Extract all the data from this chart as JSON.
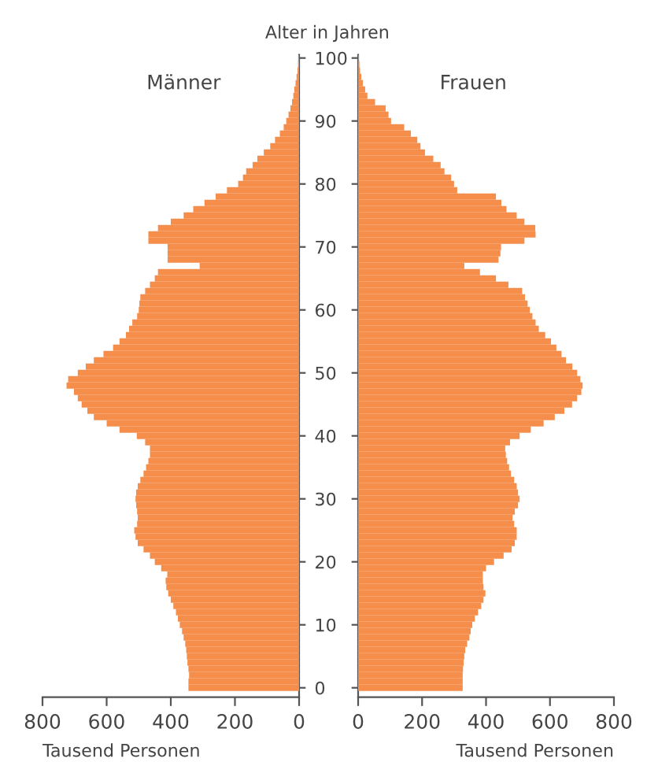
{
  "chart_data": [
    {
      "type": "bar",
      "orientation": "horizontal",
      "title": "Männer",
      "xlabel": "Tausend Personen",
      "ylabel": "Alter in Jahren",
      "x": [
        0,
        1,
        2,
        3,
        4,
        5,
        6,
        7,
        8,
        9,
        10,
        11,
        12,
        13,
        14,
        15,
        16,
        17,
        18,
        19,
        20,
        21,
        22,
        23,
        24,
        25,
        26,
        27,
        28,
        29,
        30,
        31,
        32,
        33,
        34,
        35,
        36,
        37,
        38,
        39,
        40,
        41,
        42,
        43,
        44,
        45,
        46,
        47,
        48,
        49,
        50,
        51,
        52,
        53,
        54,
        55,
        56,
        57,
        58,
        59,
        60,
        61,
        62,
        63,
        64,
        65,
        66,
        67,
        68,
        69,
        70,
        71,
        72,
        73,
        74,
        75,
        76,
        77,
        78,
        79,
        80,
        81,
        82,
        83,
        84,
        85,
        86,
        87,
        88,
        89,
        90,
        91,
        92,
        93,
        94,
        95,
        96,
        97,
        98,
        99,
        100
      ],
      "values": [
        345,
        345,
        343,
        345,
        348,
        350,
        352,
        355,
        360,
        365,
        372,
        378,
        384,
        392,
        400,
        408,
        414,
        416,
        411,
        430,
        450,
        465,
        485,
        503,
        510,
        514,
        505,
        503,
        505,
        508,
        510,
        508,
        503,
        495,
        485,
        477,
        470,
        465,
        465,
        480,
        506,
        560,
        600,
        640,
        660,
        678,
        690,
        702,
        725,
        720,
        690,
        665,
        640,
        610,
        580,
        560,
        540,
        530,
        520,
        505,
        500,
        498,
        495,
        480,
        465,
        450,
        440,
        310,
        410,
        410,
        410,
        470,
        470,
        440,
        400,
        360,
        330,
        295,
        260,
        225,
        190,
        175,
        165,
        145,
        130,
        110,
        90,
        75,
        60,
        48,
        40,
        33,
        27,
        22,
        18,
        15,
        11,
        8,
        5,
        3,
        2
      ],
      "color": "#f58d4b",
      "xlim": [
        800,
        0
      ],
      "xticks": [
        0,
        200,
        400,
        600,
        800
      ],
      "ylim": [
        -1.5,
        100.5
      ],
      "yticks": [
        0,
        10,
        20,
        30,
        40,
        50,
        60,
        70,
        80,
        90,
        100
      ]
    },
    {
      "type": "bar",
      "orientation": "horizontal",
      "title": "Frauen",
      "xlabel": "Tausend Personen",
      "x": [
        0,
        1,
        2,
        3,
        4,
        5,
        6,
        7,
        8,
        9,
        10,
        11,
        12,
        13,
        14,
        15,
        16,
        17,
        18,
        19,
        20,
        21,
        22,
        23,
        24,
        25,
        26,
        27,
        28,
        29,
        30,
        31,
        32,
        33,
        34,
        35,
        36,
        37,
        38,
        39,
        40,
        41,
        42,
        43,
        44,
        45,
        46,
        47,
        48,
        49,
        50,
        51,
        52,
        53,
        54,
        55,
        56,
        57,
        58,
        59,
        60,
        61,
        62,
        63,
        64,
        65,
        66,
        67,
        68,
        69,
        70,
        71,
        72,
        73,
        74,
        75,
        76,
        77,
        78,
        79,
        80,
        81,
        82,
        83,
        84,
        85,
        86,
        87,
        88,
        89,
        90,
        91,
        92,
        93,
        94,
        95,
        96,
        97,
        98,
        99,
        100
      ],
      "values": [
        327,
        327,
        327,
        328,
        330,
        332,
        335,
        341,
        348,
        352,
        357,
        365,
        375,
        385,
        392,
        398,
        392,
        390,
        390,
        400,
        425,
        455,
        480,
        490,
        496,
        496,
        488,
        483,
        490,
        500,
        505,
        500,
        496,
        488,
        478,
        472,
        466,
        462,
        460,
        475,
        505,
        540,
        580,
        615,
        645,
        669,
        685,
        698,
        702,
        695,
        685,
        670,
        650,
        636,
        620,
        603,
        585,
        565,
        555,
        545,
        537,
        530,
        522,
        513,
        470,
        431,
        381,
        332,
        439,
        445,
        447,
        520,
        555,
        554,
        520,
        496,
        464,
        448,
        431,
        310,
        300,
        291,
        270,
        258,
        235,
        209,
        195,
        185,
        165,
        144,
        103,
        95,
        86,
        53,
        29,
        22,
        15,
        10,
        6,
        4,
        2
      ],
      "color": "#f58d4b",
      "xlim": [
        0,
        800
      ],
      "xticks": [
        0,
        200,
        400,
        600,
        800
      ],
      "ylim": [
        -1.5,
        100.5
      ],
      "yticks": [
        0,
        10,
        20,
        30,
        40,
        50,
        60,
        70,
        80,
        90,
        100
      ],
      "tick_labels": "x"
    }
  ]
}
